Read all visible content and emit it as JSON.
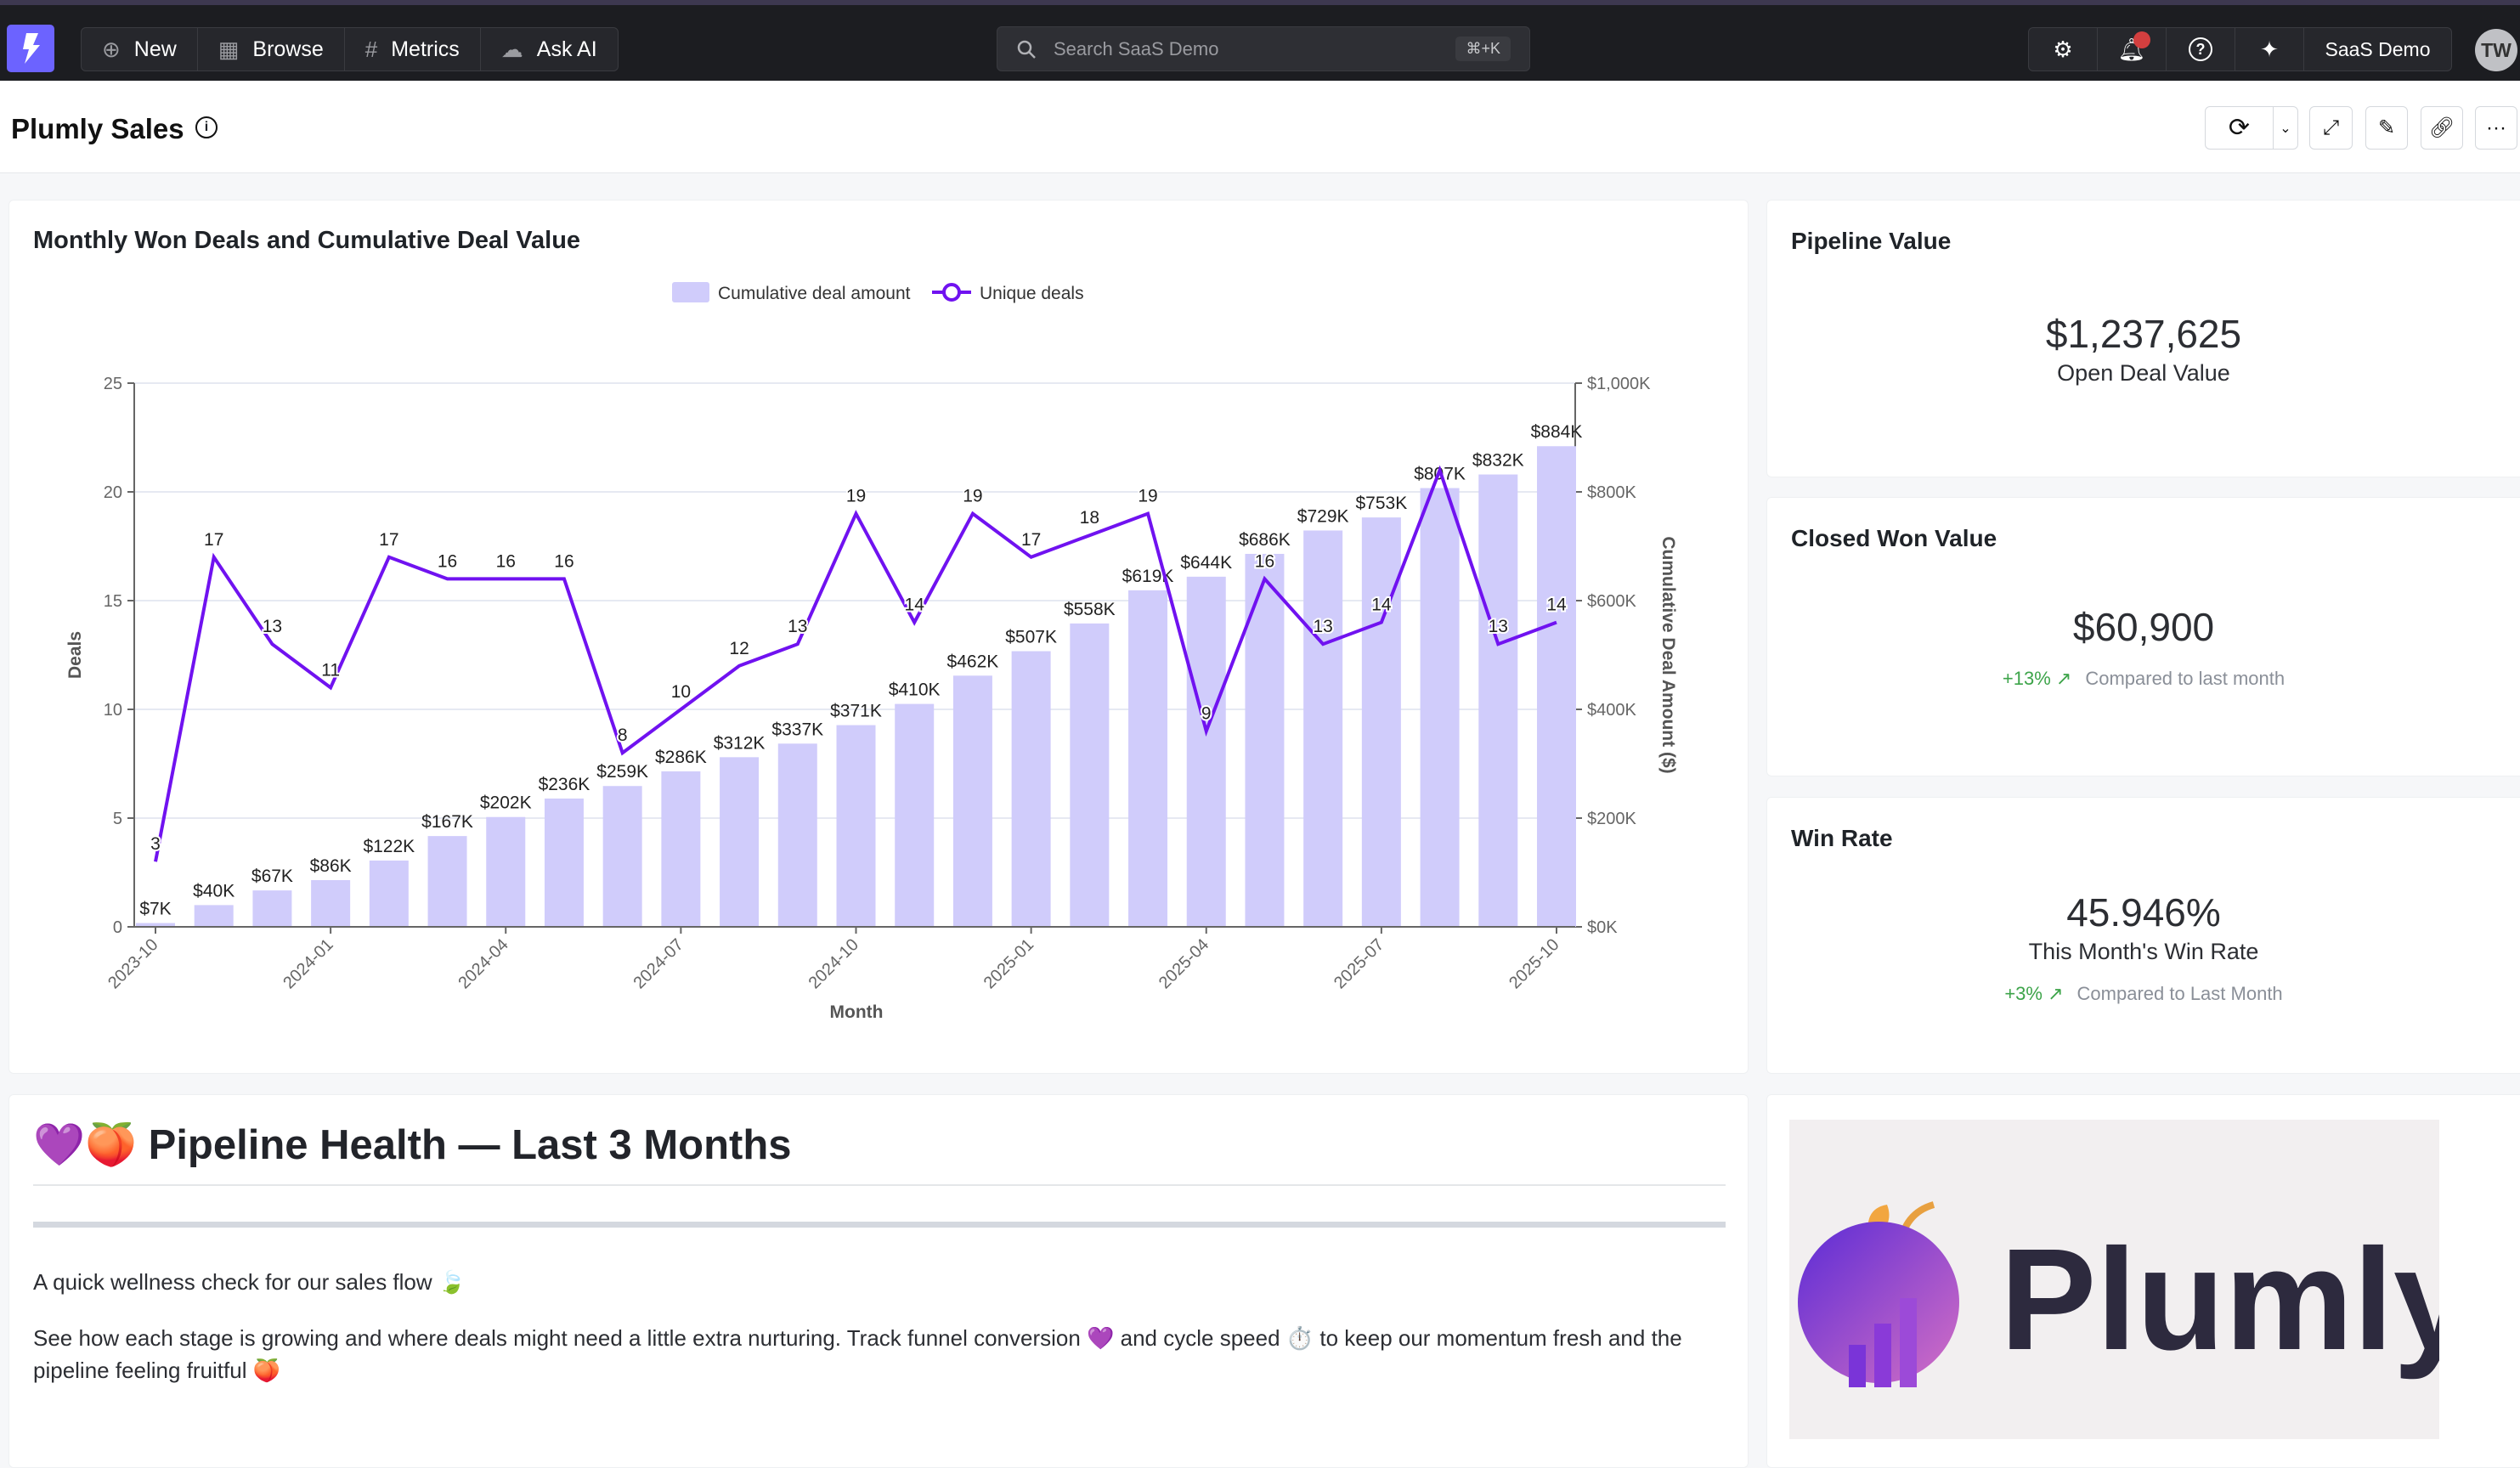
{
  "topbar": {
    "nav": [
      {
        "label": "New",
        "icon": "plus-circle-icon"
      },
      {
        "label": "Browse",
        "icon": "grid-icon"
      },
      {
        "label": "Metrics",
        "icon": "hash-icon"
      },
      {
        "label": "Ask AI",
        "icon": "chat-sparkle-icon"
      }
    ],
    "search_placeholder": "Search SaaS Demo",
    "search_shortcut": "⌘+K",
    "workspace": "SaaS Demo",
    "avatar_initials": "TW",
    "accent": "#6c63ff",
    "notification_color": "#d33f3f"
  },
  "header": {
    "title": "Plumly Sales"
  },
  "chart_data": {
    "type": "bar+line",
    "title": "Monthly Won Deals and Cumulative Deal Value",
    "xlabel": "Month",
    "ylabel_left": "Deals",
    "ylabel_right": "Cumulative Deal Amount ($)",
    "legend": [
      "Cumulative deal amount",
      "Unique deals"
    ],
    "legend_position": "top-center",
    "x": [
      "2023-10",
      "2023-11",
      "2023-12",
      "2024-01",
      "2024-02",
      "2024-03",
      "2024-04",
      "2024-05",
      "2024-06",
      "2024-07",
      "2024-08",
      "2024-09",
      "2024-10",
      "2024-11",
      "2024-12",
      "2025-01",
      "2025-02",
      "2025-03",
      "2025-04",
      "2025-05",
      "2025-06",
      "2025-07",
      "2025-08",
      "2025-09",
      "2025-10"
    ],
    "x_tick_labels": [
      "2023-10",
      "2024-01",
      "2024-04",
      "2024-07",
      "2024-10",
      "2025-01",
      "2025-04",
      "2025-07",
      "2025-10"
    ],
    "series": [
      {
        "name": "Cumulative deal amount",
        "type": "bar",
        "axis": "right",
        "color": "#d0ccfb",
        "values": [
          7,
          40,
          67,
          86,
          122,
          167,
          202,
          236,
          259,
          286,
          312,
          337,
          371,
          410,
          462,
          507,
          558,
          619,
          644,
          686,
          729,
          753,
          807,
          832,
          884
        ],
        "labels": [
          "$7K",
          "$40K",
          "$67K",
          "$86K",
          "$122K",
          "$167K",
          "$202K",
          "$236K",
          "$259K",
          "$286K",
          "$312K",
          "$337K",
          "$371K",
          "$410K",
          "$462K",
          "$507K",
          "$558K",
          "$619K",
          "$644K",
          "$686K",
          "$729K",
          "$753K",
          "$807K",
          "$832K",
          "$884K"
        ]
      },
      {
        "name": "Unique deals",
        "type": "line",
        "axis": "left",
        "color": "#7012f0",
        "values": [
          3,
          17,
          13,
          11,
          17,
          16,
          16,
          16,
          8,
          10,
          12,
          13,
          19,
          14,
          19,
          17,
          18,
          19,
          9,
          16,
          13,
          14,
          21,
          13,
          14
        ],
        "labels": [
          "3",
          "17",
          "13",
          "11",
          "17",
          "16",
          "16",
          "16",
          "8",
          "10",
          "12",
          "13",
          "19",
          "14",
          "19",
          "17",
          "18",
          "19",
          "9",
          "16",
          "13",
          "14",
          "",
          "13",
          "14"
        ]
      }
    ],
    "ylim_left": [
      0,
      25
    ],
    "yticks_left": [
      "0",
      "5",
      "10",
      "15",
      "20",
      "25"
    ],
    "ylim_right_thousands": [
      0,
      1000
    ],
    "yticks_right": [
      "$0K",
      "$200K",
      "$400K",
      "$600K",
      "$800K",
      "$1,000K"
    ],
    "grid": true
  },
  "kpis": {
    "pipeline": {
      "title": "Pipeline Value",
      "value": "$1,237,625",
      "subtitle": "Open Deal Value"
    },
    "closed_won": {
      "title": "Closed Won Value",
      "value": "$60,900",
      "change": "+13% ↗",
      "compare": "Compared to last month"
    },
    "win_rate": {
      "title": "Win Rate",
      "value": "45.946%",
      "subtitle": "This Month's Win Rate",
      "change": "+3% ↗",
      "compare": "Compared to Last Month"
    }
  },
  "text_card": {
    "heading": "💜🍑 Pipeline Health — Last 3 Months",
    "para1": "A quick wellness check for our sales flow 🍃",
    "para2": "See how each stage is growing and where deals might need a little extra nurturing. Track funnel conversion 💜 and cycle speed ⏱️ to keep our momentum fresh and the pipeline feeling fruitful 🍑"
  },
  "brand_image": {
    "wordmark": "Plumly"
  }
}
